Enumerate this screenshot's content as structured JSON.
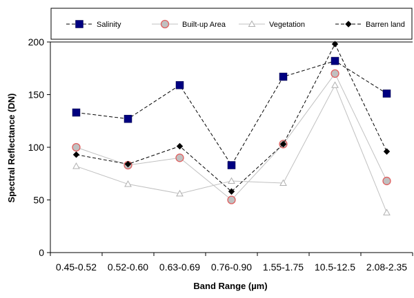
{
  "chart_data": {
    "type": "line",
    "title": "",
    "xlabel": "Band Range (µm)",
    "ylabel": "Spectral Reflectance (DN)",
    "categories": [
      "0.45-0.52",
      "0.52-0.60",
      "0.63-0.69",
      "0.76-0.90",
      "1.55-1.75",
      "10.5-12.5",
      "2.08-2.35"
    ],
    "ylim": [
      0,
      200
    ],
    "yticks": [
      0,
      50,
      100,
      150,
      200
    ],
    "grid": false,
    "legend_position": "top",
    "series": [
      {
        "name": "Salinity",
        "values": [
          133,
          127,
          159,
          83,
          167,
          182,
          151
        ],
        "color": "#000080",
        "line_color": "#000000",
        "dash": "dashed",
        "marker": "square"
      },
      {
        "name": "Built-up Area",
        "values": [
          100,
          83,
          90,
          50,
          103,
          170,
          68
        ],
        "color": "#c0c0c0",
        "line_color": "#c0c0c0",
        "dash": "solid",
        "marker": "circle",
        "marker_stroke": "#e06060"
      },
      {
        "name": "Vegetation",
        "values": [
          82,
          65,
          56,
          68,
          66,
          159,
          38
        ],
        "color": "#c0c0c0",
        "line_color": "#c0c0c0",
        "dash": "solid",
        "marker": "triangle"
      },
      {
        "name": "Barren land",
        "values": [
          93,
          84,
          101,
          58,
          103,
          198,
          96
        ],
        "color": "#000000",
        "line_color": "#000000",
        "dash": "dashed",
        "marker": "diamond"
      }
    ]
  }
}
